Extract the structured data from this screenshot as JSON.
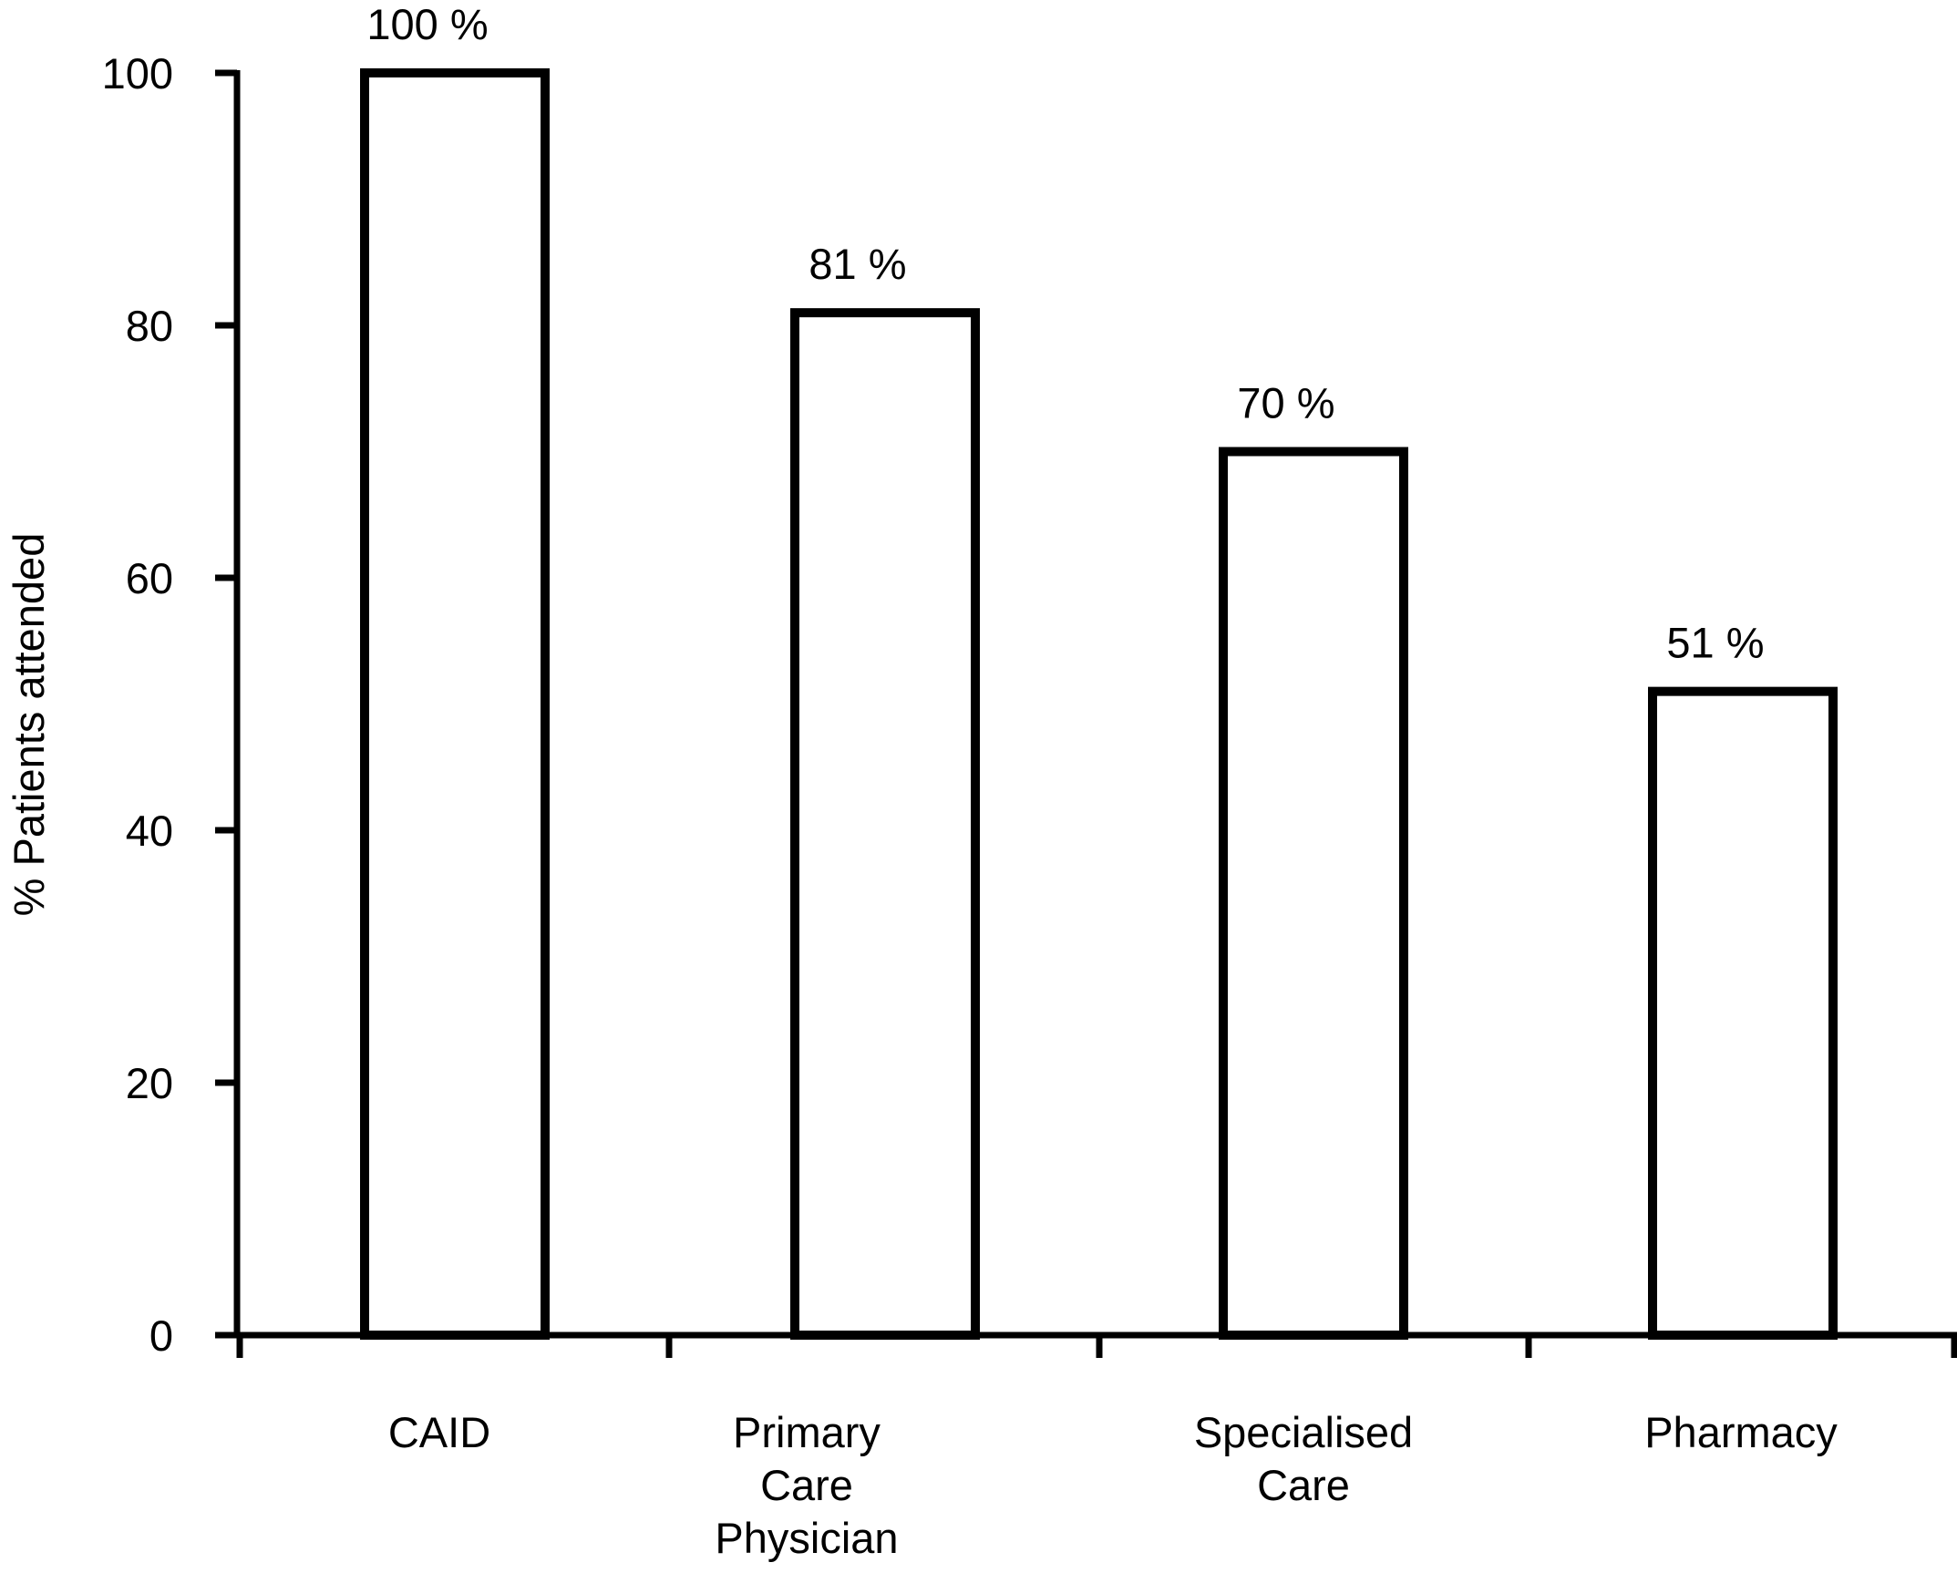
{
  "chart_data": {
    "type": "bar",
    "title": "",
    "xlabel": "",
    "ylabel": "% Patients attended",
    "categories": [
      "CAID",
      "Primary Care Physician",
      "Specialised Care",
      "Pharmacy"
    ],
    "category_display_lines": [
      [
        "CAID"
      ],
      [
        "Primary",
        "Care",
        "Physician"
      ],
      [
        "Specialised",
        "Care"
      ],
      [
        "Pharmacy"
      ]
    ],
    "values": [
      100,
      81,
      70,
      51
    ],
    "bar_value_labels": [
      "100 %",
      "81 %",
      "70 %",
      "51 %"
    ],
    "ylim": [
      0,
      100
    ],
    "yticks": [
      0,
      20,
      40,
      60,
      80,
      100
    ],
    "ytick_labels": [
      "0",
      "20",
      "40",
      "60",
      "80",
      "100"
    ],
    "grid": false,
    "legend_position": "none",
    "bar_fill_color": "#ffffff",
    "bar_border_color": "#000000",
    "axis_color": "#000000",
    "text_color": "#000000",
    "background_color": "#ffffff"
  }
}
